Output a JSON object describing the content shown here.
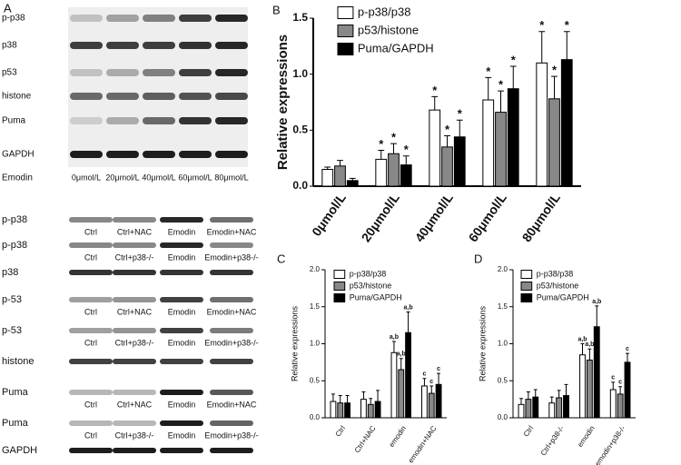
{
  "panel_labels": [
    "A",
    "B",
    "C",
    "D"
  ],
  "blots_top": {
    "rows": [
      "p-p38",
      "p38",
      "p53",
      "histone",
      "Puma",
      "GAPDH"
    ],
    "treatment_label": "Emodin",
    "lanes": [
      "0μmol/L",
      "20μmol/L",
      "40μmol/L",
      "60μmol/L",
      "80μmol/L"
    ]
  },
  "blots_bottom": [
    {
      "label": "p-p38",
      "lanes": [
        "Ctrl",
        "Ctrl+NAC",
        "Emodin",
        "Emodin+NAC"
      ]
    },
    {
      "label": "p-p38",
      "lanes": [
        "Ctrl",
        "Ctrl+p38-/-",
        "Emodin",
        "Emodin+p38-/-"
      ]
    },
    {
      "label": "p38"
    },
    {
      "label": "p-53",
      "lanes": [
        "Ctrl",
        "Ctrl+NAC",
        "Emodin",
        "Emodin+NAC"
      ]
    },
    {
      "label": "p-53",
      "lanes": [
        "Ctrl",
        "Ctrl+p38-/-",
        "Emodin",
        "Emodin+p38-/-"
      ]
    },
    {
      "label": "histone"
    },
    {
      "label": "Puma",
      "lanes": [
        "Ctrl",
        "Ctrl+NAC",
        "Emodin",
        "Emodin+NAC"
      ]
    },
    {
      "label": "Puma",
      "lanes": [
        "Ctrl",
        "Ctrl+p38-/-",
        "Emodin",
        "Emodin+p38-/-"
      ]
    },
    {
      "label": "GAPDH"
    }
  ],
  "chart_data": [
    {
      "type": "bar",
      "y_label": "Relative expressions",
      "categories": [
        "0μmol/L",
        "20μmol/L",
        "40μmol/L",
        "60μmol/L",
        "80μmol/L"
      ],
      "ylim": [
        0,
        1.5
      ],
      "yticks": [
        {
          "value": 0,
          "label": "0.0"
        },
        0.5,
        {
          "value": 1,
          "label": "1.0"
        },
        1.5
      ],
      "series": [
        {
          "name": "p-p38/p38",
          "color": "#ffffff",
          "values": [
            0.15,
            0.24,
            0.68,
            0.77,
            1.1
          ],
          "errors": [
            0.02,
            0.08,
            0.12,
            0.2,
            0.28
          ],
          "annotations": [
            null,
            "*",
            "*",
            "*",
            "*"
          ]
        },
        {
          "name": "p53/histone",
          "color": "#888888",
          "values": [
            0.18,
            0.29,
            0.35,
            0.66,
            0.78
          ],
          "errors": [
            0.05,
            0.09,
            0.1,
            0.19,
            0.2
          ],
          "annotations": [
            null,
            "*",
            "*",
            "*",
            "*"
          ]
        },
        {
          "name": "Puma/GAPDH",
          "color": "#000000",
          "values": [
            0.05,
            0.19,
            0.44,
            0.87,
            1.13
          ],
          "errors": [
            0.02,
            0.08,
            0.15,
            0.2,
            0.25
          ],
          "annotations": [
            null,
            "*",
            "*",
            "*",
            "*"
          ]
        }
      ]
    },
    {
      "type": "bar",
      "y_label": "Relative expressions",
      "categories": [
        "Ctrl",
        "Ctrl+NAC",
        "emodin",
        "emodin+NAC"
      ],
      "ylim": [
        0,
        2
      ],
      "yticks": [
        {
          "value": 0,
          "label": "0.0"
        },
        0.5,
        {
          "value": 1,
          "label": "1.0"
        },
        1.5,
        {
          "value": 2,
          "label": "2.0"
        }
      ],
      "series": [
        {
          "name": "p-p38/p38",
          "color": "#ffffff",
          "values": [
            0.22,
            0.25,
            0.88,
            0.43
          ],
          "errors": [
            0.1,
            0.1,
            0.15,
            0.1
          ],
          "annotations": [
            null,
            null,
            "a,b",
            "c"
          ]
        },
        {
          "name": "p53/histone",
          "color": "#888888",
          "values": [
            0.2,
            0.18,
            0.65,
            0.33
          ],
          "errors": [
            0.1,
            0.08,
            0.15,
            0.1
          ],
          "annotations": [
            null,
            null,
            "a,b",
            "c"
          ]
        },
        {
          "name": "Puma/GAPDH",
          "color": "#000000",
          "values": [
            0.2,
            0.22,
            1.15,
            0.45
          ],
          "errors": [
            0.1,
            0.15,
            0.28,
            0.15
          ],
          "annotations": [
            null,
            null,
            "a,b",
            "c"
          ]
        }
      ]
    },
    {
      "type": "bar",
      "y_label": "Relative expressions",
      "categories": [
        "Ctrl",
        "Ctrl+p38-/-",
        "emodin",
        "emodin+p38-/-"
      ],
      "ylim": [
        0,
        2
      ],
      "yticks": [
        {
          "value": 0,
          "label": "0.0"
        },
        0.5,
        {
          "value": 1,
          "label": "1.0"
        },
        1.5,
        {
          "value": 2,
          "label": "2.0"
        }
      ],
      "series": [
        {
          "name": "p-p38/p38",
          "color": "#ffffff",
          "values": [
            0.18,
            0.2,
            0.85,
            0.38
          ],
          "errors": [
            0.08,
            0.08,
            0.15,
            0.1
          ],
          "annotations": [
            null,
            null,
            "a,b",
            "c"
          ]
        },
        {
          "name": "p53/histone",
          "color": "#888888",
          "values": [
            0.25,
            0.27,
            0.78,
            0.32
          ],
          "errors": [
            0.1,
            0.1,
            0.15,
            0.1
          ],
          "annotations": [
            null,
            null,
            "a,b",
            "c"
          ]
        },
        {
          "name": "Puma/GAPDH",
          "color": "#000000",
          "values": [
            0.28,
            0.3,
            1.23,
            0.75
          ],
          "errors": [
            0.1,
            0.15,
            0.28,
            0.12
          ],
          "annotations": [
            null,
            null,
            "a,b",
            "c"
          ]
        }
      ]
    }
  ]
}
